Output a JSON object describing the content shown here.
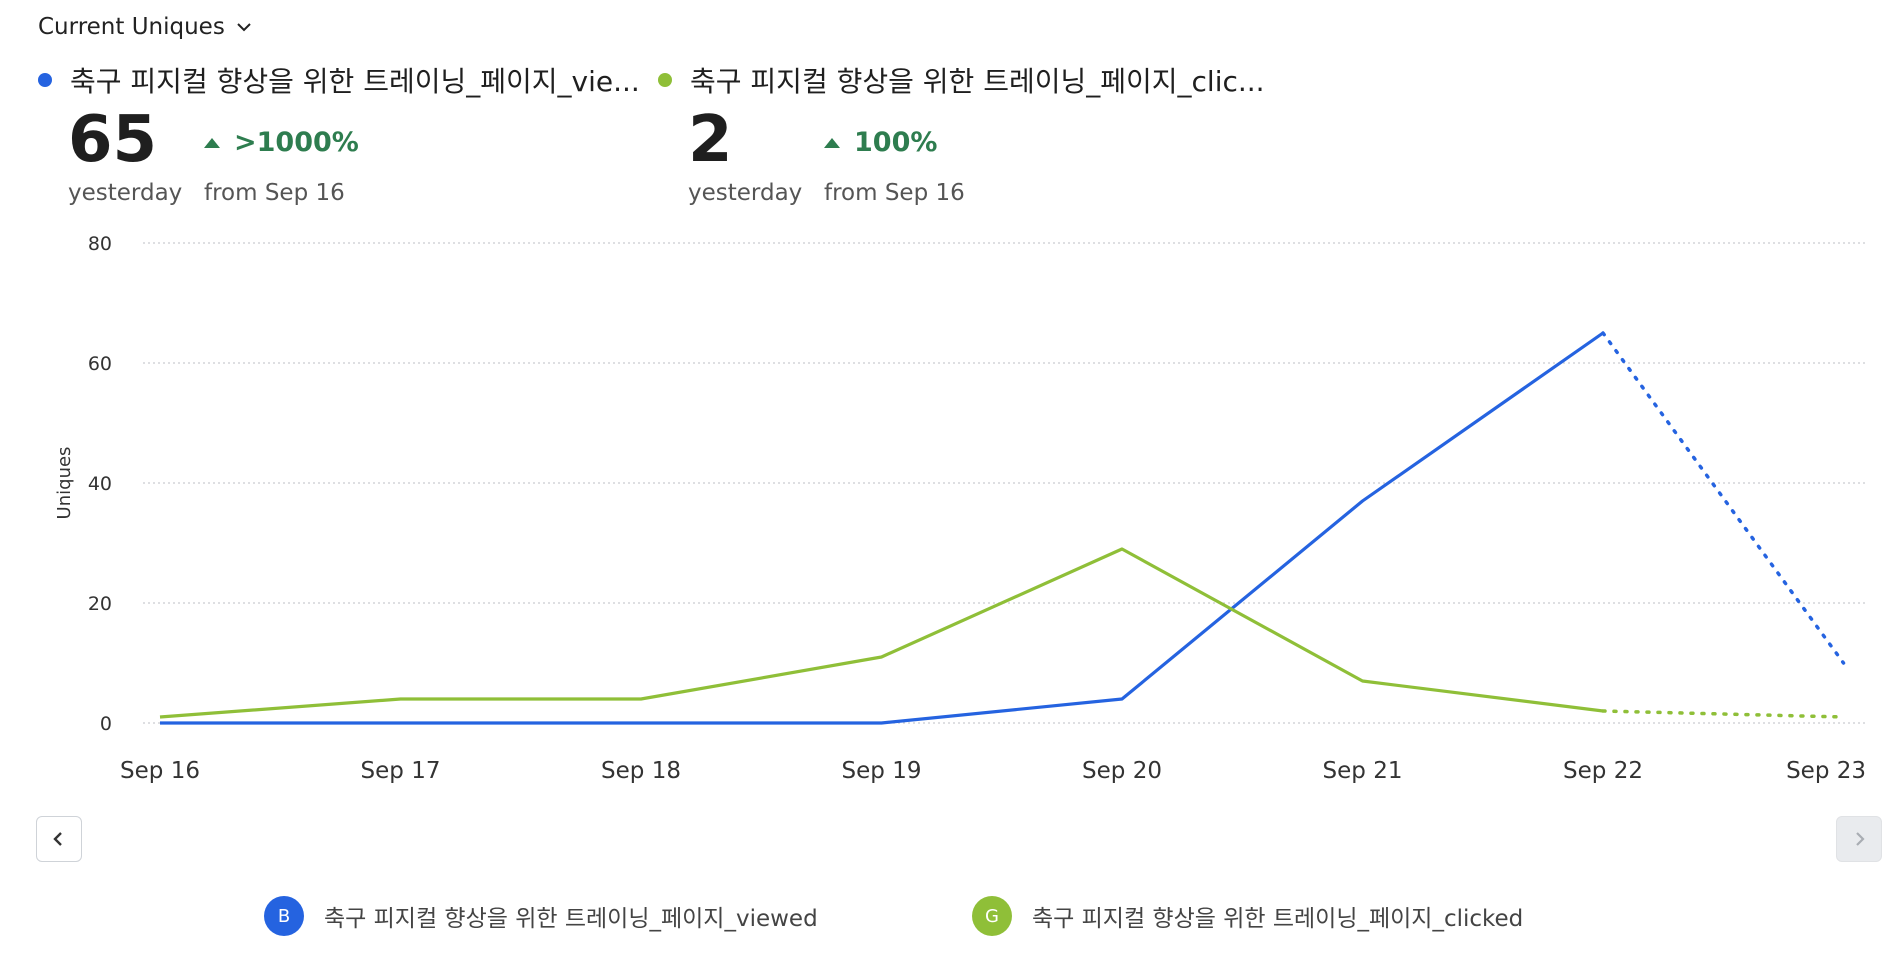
{
  "metric_selector": {
    "label": "Current Uniques",
    "icon": "chevron-down-icon"
  },
  "series_summary": [
    {
      "name": "축구 피지컬 향상을 위한 트레이닝_페이지_vie...",
      "color": "#2563e0",
      "value": "65",
      "value_caption": "yesterday",
      "delta": ">1000%",
      "delta_caption": "from Sep 16",
      "delta_direction": "up"
    },
    {
      "name": "축구 피지컬 향상을 위한 트레이닝_페이지_clic...",
      "color": "#8fbf38",
      "value": "2",
      "value_caption": "yesterday",
      "delta": "100%",
      "delta_caption": "from Sep 16",
      "delta_direction": "up"
    }
  ],
  "chart_data": {
    "type": "line",
    "ylabel": "Uniques",
    "xlabel": "",
    "ylim": [
      0,
      80
    ],
    "yticks": [
      "0",
      "20",
      "40",
      "60",
      "80"
    ],
    "categories": [
      "Sep 16",
      "Sep 17",
      "Sep 18",
      "Sep 19",
      "Sep 20",
      "Sep 21",
      "Sep 22",
      "Sep 23"
    ],
    "grid": true,
    "series": [
      {
        "name": "축구 피지컬 향상을 위한 트레이닝_페이지_viewed",
        "color": "#2563e0",
        "values": [
          0,
          0,
          0,
          0,
          4,
          37,
          65,
          10
        ],
        "incomplete_from_index": 6
      },
      {
        "name": "축구 피지컬 향상을 위한 트레이닝_페이지_clicked",
        "color": "#8fbf38",
        "values": [
          1,
          4,
          4,
          11,
          29,
          7,
          2,
          1
        ],
        "incomplete_from_index": 6
      }
    ]
  },
  "legend": [
    {
      "badge": "B",
      "label": "축구 피지컬 향상을 위한 트레이닝_페이지_viewed",
      "color": "#2563e0"
    },
    {
      "badge": "G",
      "label": "축구 피지컬 향상을 위한 트레이닝_페이지_clicked",
      "color": "#8fbf38"
    }
  ],
  "nav": {
    "prev_icon": "chevron-left-icon",
    "next_icon": "chevron-right-icon"
  }
}
